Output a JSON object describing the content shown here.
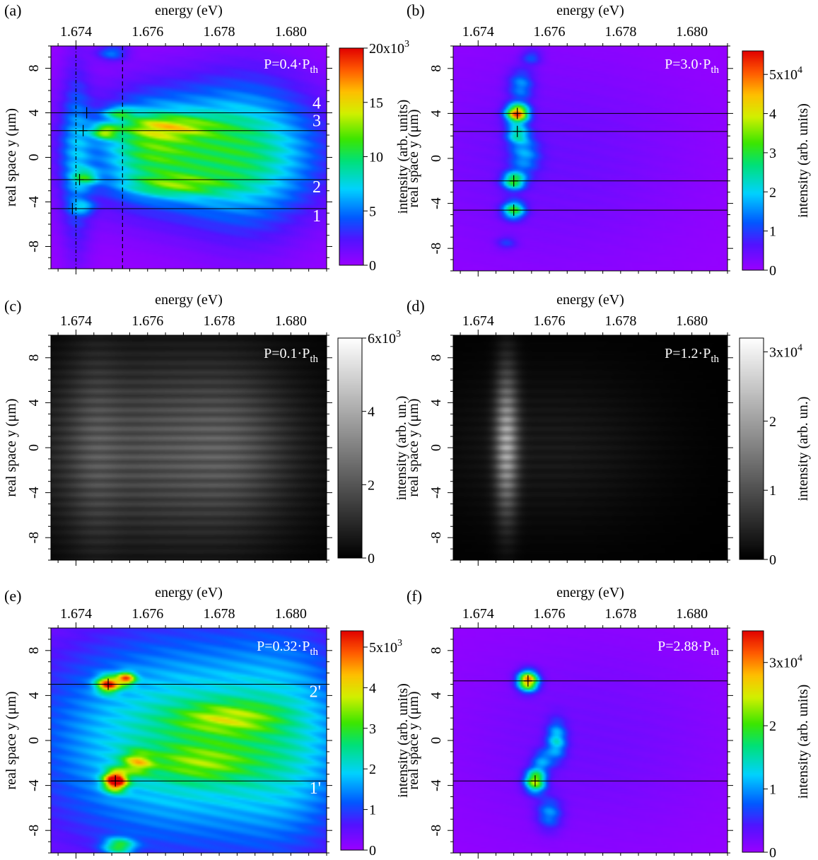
{
  "chart_data": [
    {
      "type": "heatmap",
      "panel_label": "(a)",
      "xlabel": "energy (eV)",
      "ylabel": "real space y (μm)",
      "colorbar_label": "intensity (arb. units)",
      "x_ticks": [
        "1.674",
        "1.676",
        "1.678",
        "1.680"
      ],
      "y_ticks": [
        "8",
        "4",
        "0",
        "-4",
        "-8"
      ],
      "xlim": [
        1.6733,
        1.681
      ],
      "ylim": [
        -10,
        10
      ],
      "colormap": "rainbow",
      "power_text": "P=0.4·P",
      "power_sub": "th",
      "colorbar_ticks": [
        "20x10",
        "15",
        "10",
        "5",
        "0"
      ],
      "colorbar_exp": "3",
      "colorbar_range": [
        0,
        20000
      ],
      "h_lines_y": [
        4.0,
        2.4,
        -2.0,
        -4.6
      ],
      "h_line_labels": [
        "4",
        "3",
        "2",
        "1"
      ],
      "v_lines_x": [
        1.674,
        1.6753
      ],
      "markers": [
        {
          "x": 1.6743,
          "y": 4.0
        },
        {
          "x": 1.6742,
          "y": 2.4
        },
        {
          "x": 1.6741,
          "y": -2.0
        },
        {
          "x": 1.6739,
          "y": -4.6
        }
      ],
      "blobs": [
        {
          "x": 1.6775,
          "y": 0.5,
          "sx": 0.0022,
          "sy": 4.0,
          "a": 9000
        },
        {
          "x": 1.679,
          "y": 0.0,
          "sx": 0.0012,
          "sy": 5.5,
          "a": 3500
        },
        {
          "x": 1.6766,
          "y": 2.8,
          "sx": 0.001,
          "sy": 0.7,
          "a": 6000
        },
        {
          "x": 1.6768,
          "y": -2.5,
          "sx": 0.001,
          "sy": 0.7,
          "a": 5500
        },
        {
          "x": 1.6748,
          "y": 2.3,
          "sx": 0.00025,
          "sy": 0.45,
          "a": 9000
        },
        {
          "x": 1.6752,
          "y": 4.0,
          "sx": 0.0003,
          "sy": 0.35,
          "a": 6000
        },
        {
          "x": 1.6743,
          "y": -1.8,
          "sx": 0.00025,
          "sy": 0.5,
          "a": 6000
        },
        {
          "x": 1.6742,
          "y": -4.5,
          "sx": 0.00025,
          "sy": 0.4,
          "a": 4000
        },
        {
          "x": 1.675,
          "y": 9.4,
          "sx": 0.0003,
          "sy": 0.5,
          "a": 5000
        },
        {
          "x": 1.674,
          "y": 0.0,
          "sx": 0.0003,
          "sy": 6.0,
          "a": 4500
        },
        {
          "x": 1.676,
          "y": 1.0,
          "sx": 0.0008,
          "sy": 2.5,
          "a": 5000
        }
      ]
    },
    {
      "type": "heatmap",
      "panel_label": "(b)",
      "xlabel": "energy (eV)",
      "ylabel": "real space y (μm)",
      "colorbar_label": "intensity (arb. units)",
      "x_ticks": [
        "1.674",
        "1.676",
        "1.678",
        "1.680"
      ],
      "y_ticks": [
        "8",
        "4",
        "0",
        "-4",
        "-8"
      ],
      "xlim": [
        1.6733,
        1.681
      ],
      "ylim": [
        -10,
        10
      ],
      "colormap": "rainbow",
      "power_text": "P=3.0·P",
      "power_sub": "th",
      "colorbar_ticks": [
        "5x10",
        "4",
        "3",
        "2",
        "1",
        "0"
      ],
      "colorbar_exp": "4",
      "colorbar_range": [
        0,
        56000
      ],
      "h_lines_y": [
        4.0,
        2.4,
        -2.0,
        -4.6
      ],
      "h_line_labels": [],
      "v_lines_x": [],
      "markers": [
        {
          "x": 1.6751,
          "y": 4.0
        },
        {
          "x": 1.6751,
          "y": 2.4
        },
        {
          "x": 1.675,
          "y": -2.0
        },
        {
          "x": 1.675,
          "y": -4.6
        }
      ],
      "blobs": [
        {
          "x": 1.676,
          "y": 0.0,
          "sx": 0.003,
          "sy": 7.0,
          "a": 4500
        },
        {
          "x": 1.6751,
          "y": 4.0,
          "sx": 0.00022,
          "sy": 0.55,
          "a": 52000
        },
        {
          "x": 1.675,
          "y": -2.0,
          "sx": 0.00022,
          "sy": 0.55,
          "a": 30000
        },
        {
          "x": 1.675,
          "y": -4.6,
          "sx": 0.00022,
          "sy": 0.55,
          "a": 30000
        },
        {
          "x": 1.6751,
          "y": 2.2,
          "sx": 0.00022,
          "sy": 0.6,
          "a": 20000
        },
        {
          "x": 1.6753,
          "y": 0.3,
          "sx": 0.0003,
          "sy": 1.2,
          "a": 14000
        },
        {
          "x": 1.6755,
          "y": 9.0,
          "sx": 0.0002,
          "sy": 0.5,
          "a": 10000
        },
        {
          "x": 1.6752,
          "y": 6.5,
          "sx": 0.00025,
          "sy": 1.0,
          "a": 14000
        },
        {
          "x": 1.6748,
          "y": -7.5,
          "sx": 0.0002,
          "sy": 0.4,
          "a": 8000
        }
      ]
    },
    {
      "type": "heatmap",
      "panel_label": "(c)",
      "xlabel": "energy (eV)",
      "ylabel": "real space y (μm)",
      "colorbar_label": "intensity (arb. un.)",
      "x_ticks": [
        "1.674",
        "1.676",
        "1.678",
        "1.680"
      ],
      "y_ticks": [
        "8",
        "4",
        "0",
        "-4",
        "-8"
      ],
      "xlim": [
        1.6733,
        1.681
      ],
      "ylim": [
        -10,
        10
      ],
      "colormap": "gray",
      "power_text": "P=0.1·P",
      "power_sub": "th",
      "colorbar_ticks": [
        "6x10",
        "4",
        "2",
        "0"
      ],
      "colorbar_exp": "3",
      "colorbar_range": [
        0,
        6000
      ],
      "h_lines_y": [],
      "h_line_labels": [],
      "v_lines_x": [],
      "markers": [],
      "blobs": [
        {
          "x": 1.6765,
          "y": 0.0,
          "sx": 0.0025,
          "sy": 6.0,
          "a": 2200
        },
        {
          "x": 1.6745,
          "y": 0.0,
          "sx": 0.0005,
          "sy": 7.0,
          "a": 800
        },
        {
          "x": 1.6785,
          "y": 0.0,
          "sx": 0.001,
          "sy": 5.0,
          "a": 800
        }
      ]
    },
    {
      "type": "heatmap",
      "panel_label": "(d)",
      "xlabel": "energy (eV)",
      "ylabel": "real space y (μm)",
      "colorbar_label": "intensity (arb. un.)",
      "x_ticks": [
        "1.674",
        "1.676",
        "1.678",
        "1.680"
      ],
      "y_ticks": [
        "8",
        "4",
        "0",
        "-4",
        "-8"
      ],
      "xlim": [
        1.6733,
        1.681
      ],
      "ylim": [
        -10,
        10
      ],
      "colormap": "gray",
      "power_text": "P=1.2·P",
      "power_sub": "th",
      "colorbar_ticks": [
        "3x10",
        "2",
        "1",
        "0"
      ],
      "colorbar_exp": "4",
      "colorbar_range": [
        0,
        32000
      ],
      "h_lines_y": [],
      "h_line_labels": [],
      "v_lines_x": [],
      "markers": [],
      "blobs": [
        {
          "x": 1.6748,
          "y": 0.5,
          "sx": 0.00022,
          "sy": 4.5,
          "a": 20000
        },
        {
          "x": 1.676,
          "y": 0.0,
          "sx": 0.0022,
          "sy": 5.0,
          "a": 3500
        }
      ]
    },
    {
      "type": "heatmap",
      "panel_label": "(e)",
      "xlabel": "energy (eV)",
      "ylabel": "real space y (μm)",
      "colorbar_label": "intensity (arb. units)",
      "x_ticks": [
        "1.674",
        "1.676",
        "1.678",
        "1.680"
      ],
      "y_ticks": [
        "8",
        "4",
        "0",
        "-4",
        "-8"
      ],
      "xlim": [
        1.6733,
        1.681
      ],
      "ylim": [
        -10,
        10
      ],
      "colormap": "rainbow",
      "power_text": "P=0.32·P",
      "power_sub": "th",
      "colorbar_ticks": [
        "5x10",
        "4",
        "3",
        "2",
        "1",
        "0"
      ],
      "colorbar_exp": "3",
      "colorbar_range": [
        0,
        5400
      ],
      "h_lines_y": [
        5.0,
        -3.6
      ],
      "h_line_labels": [
        "2'",
        "1'"
      ],
      "v_lines_x": [],
      "markers": [
        {
          "x": 1.6749,
          "y": 5.0
        },
        {
          "x": 1.6751,
          "y": -3.6
        }
      ],
      "blobs": [
        {
          "x": 1.677,
          "y": 0.0,
          "sx": 0.003,
          "sy": 7.0,
          "a": 2600
        },
        {
          "x": 1.6782,
          "y": 2.0,
          "sx": 0.001,
          "sy": 1.0,
          "a": 1500
        },
        {
          "x": 1.6775,
          "y": -2.0,
          "sx": 0.001,
          "sy": 1.2,
          "a": 1200
        },
        {
          "x": 1.6749,
          "y": 5.0,
          "sx": 0.00022,
          "sy": 0.5,
          "a": 4200
        },
        {
          "x": 1.6751,
          "y": -3.6,
          "sx": 0.00022,
          "sy": 0.6,
          "a": 5200
        },
        {
          "x": 1.6754,
          "y": 5.5,
          "sx": 0.00018,
          "sy": 0.4,
          "a": 3500
        },
        {
          "x": 1.6757,
          "y": -2.0,
          "sx": 0.0003,
          "sy": 0.7,
          "a": 2000
        },
        {
          "x": 1.6752,
          "y": -9.4,
          "sx": 0.0003,
          "sy": 0.5,
          "a": 2500
        },
        {
          "x": 1.68,
          "y": 0.0,
          "sx": 0.0012,
          "sy": 8.0,
          "a": 900
        }
      ]
    },
    {
      "type": "heatmap",
      "panel_label": "(f)",
      "xlabel": "energy (eV)",
      "ylabel": "real space y (μm)",
      "colorbar_label": "intensity (arb. units)",
      "x_ticks": [
        "1.674",
        "1.676",
        "1.678",
        "1.680"
      ],
      "y_ticks": [
        "8",
        "4",
        "0",
        "-4",
        "-8"
      ],
      "xlim": [
        1.6733,
        1.681
      ],
      "ylim": [
        -10,
        10
      ],
      "colormap": "rainbow",
      "power_text": "P=2.88·P",
      "power_sub": "th",
      "colorbar_ticks": [
        "3x10",
        "2",
        "1",
        "0"
      ],
      "colorbar_exp": "4",
      "colorbar_range": [
        0,
        35000
      ],
      "h_lines_y": [
        5.3,
        -3.6
      ],
      "h_line_labels": [],
      "v_lines_x": [],
      "markers": [
        {
          "x": 1.6754,
          "y": 5.3
        },
        {
          "x": 1.6756,
          "y": -3.6
        }
      ],
      "blobs": [
        {
          "x": 1.677,
          "y": 0.0,
          "sx": 0.003,
          "sy": 7.0,
          "a": 2500
        },
        {
          "x": 1.6754,
          "y": 5.3,
          "sx": 0.0002,
          "sy": 0.6,
          "a": 32000
        },
        {
          "x": 1.6756,
          "y": -3.6,
          "sx": 0.0002,
          "sy": 0.7,
          "a": 24000
        },
        {
          "x": 1.6762,
          "y": 0.0,
          "sx": 0.0002,
          "sy": 1.2,
          "a": 12000
        },
        {
          "x": 1.676,
          "y": -6.5,
          "sx": 0.00025,
          "sy": 1.0,
          "a": 9000
        },
        {
          "x": 1.6758,
          "y": -1.8,
          "sx": 0.0002,
          "sy": 0.7,
          "a": 8000
        }
      ]
    }
  ]
}
